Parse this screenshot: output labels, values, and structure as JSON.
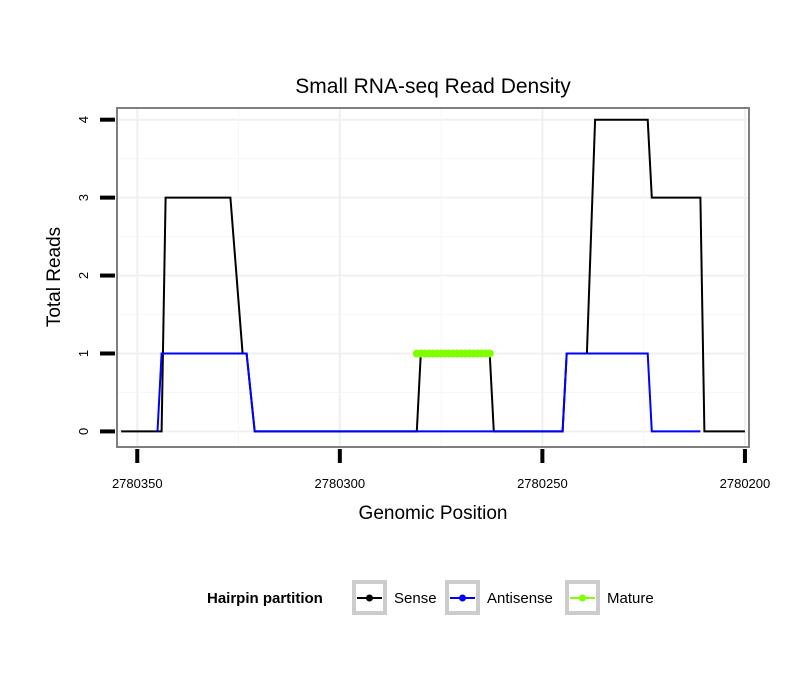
{
  "chart_data": {
    "type": "line",
    "title": "Small RNA-seq Read Density",
    "xlabel": "Genomic Position",
    "ylabel": "Total Reads",
    "xlim": [
      2780355,
      2780199
    ],
    "ylim": [
      -0.2,
      4.15
    ],
    "x_reversed": true,
    "xticks": [
      2780350,
      2780300,
      2780250,
      2780200
    ],
    "xtick_labels": [
      "2780350",
      "2780300",
      "2780250",
      "2780200"
    ],
    "yticks": [
      0,
      1,
      2,
      3,
      4
    ],
    "ytick_labels": [
      "0",
      "1",
      "2",
      "3",
      "4"
    ],
    "grid": true,
    "legend": {
      "title": "Hairpin partition",
      "position": "bottom",
      "entries": [
        {
          "label": "Sense",
          "color": "#000000"
        },
        {
          "label": "Antisense",
          "color": "#0000ff"
        },
        {
          "label": "Mature",
          "color": "#7fff00"
        }
      ]
    },
    "series": [
      {
        "name": "Sense",
        "color": "#000000",
        "x": [
          2780354,
          2780344,
          2780343,
          2780327,
          2780324,
          2780323,
          2780321,
          2780313,
          2780304,
          2780294,
          2780284,
          2780281,
          2780280,
          2780263,
          2780262,
          2780252,
          2780250,
          2780245,
          2780244,
          2780239,
          2780237,
          2780224,
          2780223,
          2780211,
          2780210,
          2780200
        ],
        "y": [
          0,
          0,
          3,
          3,
          1,
          1,
          0,
          0,
          0,
          0,
          0,
          0,
          1,
          1,
          0,
          0,
          0,
          0,
          1,
          1,
          4,
          4,
          3,
          3,
          0,
          0
        ]
      },
      {
        "name": "Antisense",
        "color": "#0000ff",
        "x": [
          2780345,
          2780344,
          2780324,
          2780323,
          2780321,
          2780300,
          2780280,
          2780262,
          2780252,
          2780245,
          2780244,
          2780239,
          2780232,
          2780224,
          2780223,
          2780211
        ],
        "y": [
          0,
          1,
          1,
          1,
          0,
          0,
          0,
          0,
          0,
          0,
          1,
          1,
          1,
          1,
          0,
          0
        ]
      },
      {
        "name": "Mature",
        "color": "#7fff00",
        "x": [
          2780281,
          2780280,
          2780279,
          2780278,
          2780277,
          2780276,
          2780275,
          2780274,
          2780273,
          2780272,
          2780271,
          2780270,
          2780269,
          2780268,
          2780267,
          2780266,
          2780265,
          2780264,
          2780263
        ],
        "y": [
          1,
          1,
          1,
          1,
          1,
          1,
          1,
          1,
          1,
          1,
          1,
          1,
          1,
          1,
          1,
          1,
          1,
          1,
          1
        ]
      }
    ]
  }
}
